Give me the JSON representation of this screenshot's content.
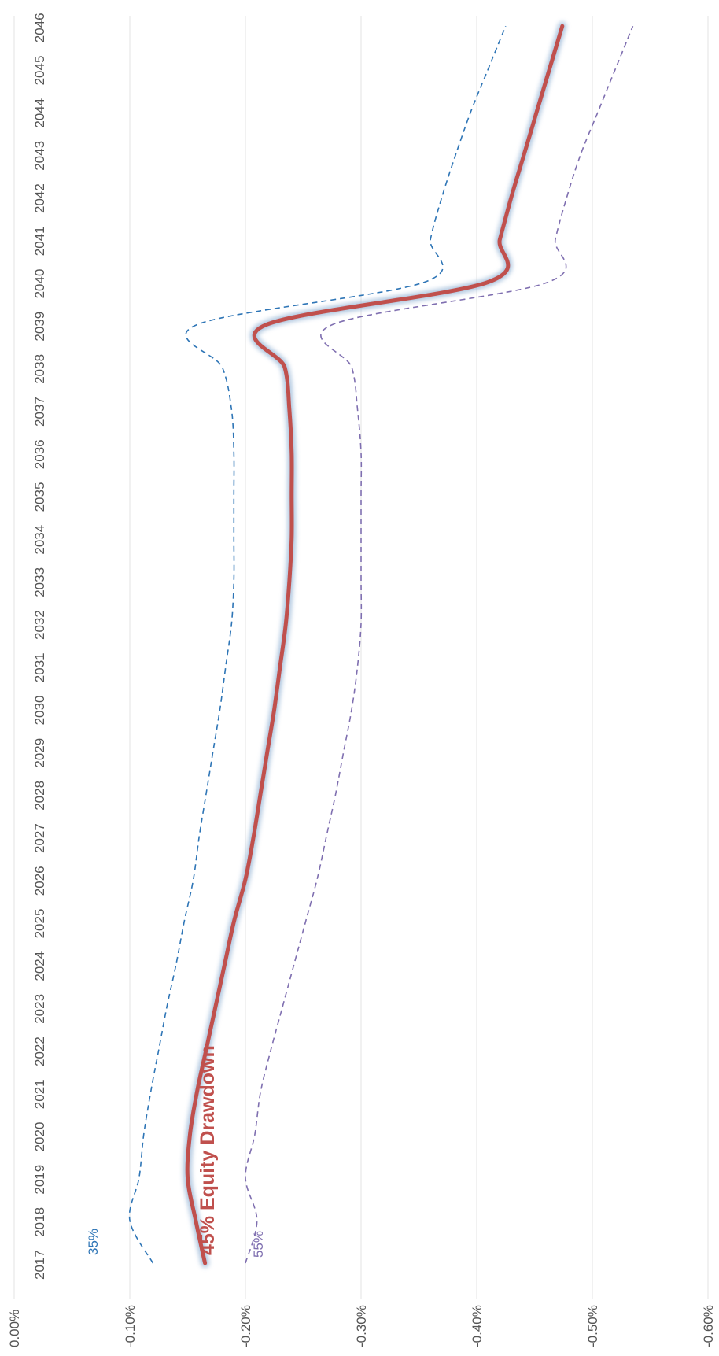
{
  "chart_data": {
    "type": "line",
    "orientation": "rotated-90-ccw",
    "x": [
      "2017",
      "2018",
      "2019",
      "2020",
      "2021",
      "2022",
      "2023",
      "2024",
      "2025",
      "2026",
      "2027",
      "2028",
      "2029",
      "2030",
      "2031",
      "2032",
      "2033",
      "2034",
      "2035",
      "2036",
      "2037",
      "2038",
      "2039",
      "2040",
      "2041",
      "2042",
      "2043",
      "2044",
      "2045",
      "2046"
    ],
    "ylim": [
      -0.6,
      0.0
    ],
    "yticks": [
      "0.00%",
      "-0.10%",
      "-0.20%",
      "-0.30%",
      "-0.40%",
      "-0.50%",
      "-0.60%"
    ],
    "yticks_values": [
      0.0,
      -0.1,
      -0.2,
      -0.3,
      -0.4,
      -0.5,
      -0.6
    ],
    "grid": true,
    "series": [
      {
        "name": "45% Equity Drawdown",
        "style": "solid-thick",
        "color": "#c0504d",
        "values": [
          -0.165,
          -0.157,
          -0.15,
          -0.152,
          -0.158,
          -0.166,
          -0.174,
          -0.182,
          -0.19,
          -0.2,
          -0.207,
          -0.213,
          -0.219,
          -0.225,
          -0.23,
          -0.235,
          -0.238,
          -0.24,
          -0.24,
          -0.24,
          -0.238,
          -0.234,
          -0.218,
          -0.41,
          -0.42,
          -0.43,
          -0.441,
          -0.452,
          -0.463,
          -0.474
        ]
      },
      {
        "name": "35%",
        "style": "dashed",
        "color": "#2e75b6",
        "values": [
          -0.12,
          -0.1,
          -0.108,
          -0.112,
          -0.118,
          -0.125,
          -0.132,
          -0.14,
          -0.147,
          -0.155,
          -0.16,
          -0.166,
          -0.172,
          -0.178,
          -0.183,
          -0.188,
          -0.19,
          -0.19,
          -0.19,
          -0.19,
          -0.188,
          -0.18,
          -0.158,
          -0.355,
          -0.36,
          -0.37,
          -0.382,
          -0.395,
          -0.41,
          -0.425
        ]
      },
      {
        "name": "55%",
        "style": "dashed",
        "color": "#7f6fb0",
        "values": [
          -0.2,
          -0.21,
          -0.2,
          -0.208,
          -0.213,
          -0.222,
          -0.232,
          -0.242,
          -0.252,
          -0.262,
          -0.27,
          -0.278,
          -0.285,
          -0.292,
          -0.297,
          -0.3,
          -0.3,
          -0.3,
          -0.3,
          -0.3,
          -0.297,
          -0.292,
          -0.275,
          -0.462,
          -0.468,
          -0.478,
          -0.49,
          -0.505,
          -0.52,
          -0.535
        ]
      }
    ]
  }
}
